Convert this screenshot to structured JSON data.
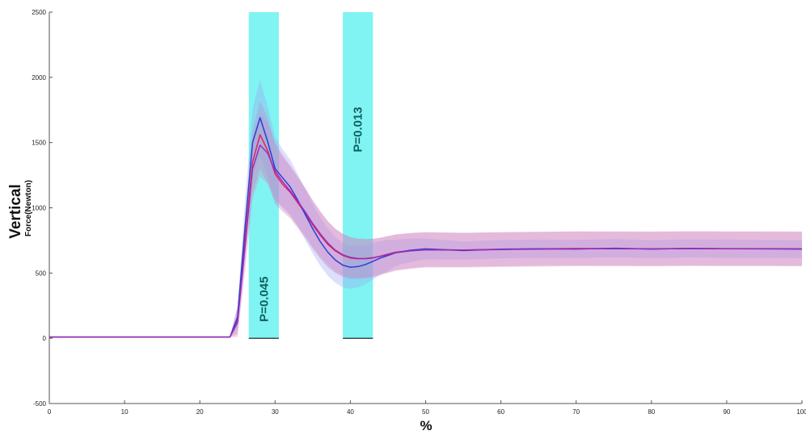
{
  "chart_data": {
    "type": "line",
    "xlabel": "%",
    "ylabel": "Vertical",
    "ylabel_sub": "Force(Newton)",
    "xlim": [
      0,
      100
    ],
    "ylim": [
      -500,
      2500
    ],
    "xticks": [
      0,
      10,
      20,
      30,
      40,
      50,
      60,
      70,
      80,
      90,
      100
    ],
    "yticks": [
      -500,
      0,
      500,
      1000,
      1500,
      2000,
      2500
    ],
    "grid": false,
    "highlight_regions": [
      {
        "x0": 26.5,
        "x1": 30.5,
        "label": "P=0.045",
        "label_position": "lower"
      },
      {
        "x0": 39,
        "x1": 43,
        "label": "P=0.013",
        "label_position": "upper"
      }
    ],
    "series": [
      {
        "color": "#e0245e",
        "band_color": "#c77ab8",
        "x": [
          0,
          24,
          25,
          26,
          27,
          28,
          29,
          30,
          31,
          32,
          33,
          34,
          35,
          36,
          37,
          38,
          39,
          40,
          41,
          42,
          43,
          44,
          45,
          46,
          48,
          50,
          55,
          60,
          65,
          70,
          75,
          80,
          85,
          90,
          95,
          100
        ],
        "y": [
          10,
          10,
          130,
          750,
          1350,
          1560,
          1440,
          1260,
          1180,
          1120,
          1040,
          960,
          870,
          790,
          720,
          670,
          635,
          615,
          610,
          612,
          618,
          630,
          645,
          660,
          672,
          680,
          677,
          682,
          685,
          688,
          687,
          686,
          688,
          687,
          687,
          686
        ],
        "band": [
          0,
          0,
          100,
          180,
          240,
          260,
          250,
          230,
          210,
          200,
          195,
          190,
          185,
          180,
          175,
          170,
          165,
          160,
          155,
          150,
          145,
          140,
          138,
          136,
          134,
          132,
          130,
          130,
          130,
          130,
          130,
          130,
          130,
          130,
          130,
          130
        ]
      },
      {
        "color": "#2b3fd4",
        "band_color": "#9b9ff0",
        "x": [
          0,
          24,
          25,
          26,
          27,
          28,
          29,
          30,
          31,
          32,
          33,
          34,
          35,
          36,
          37,
          38,
          39,
          40,
          41,
          42,
          43,
          44,
          45,
          46,
          48,
          50,
          55,
          60,
          65,
          70,
          75,
          80,
          85,
          90,
          95,
          100
        ],
        "y": [
          10,
          10,
          160,
          850,
          1500,
          1690,
          1510,
          1300,
          1230,
          1160,
          1060,
          950,
          840,
          740,
          660,
          600,
          560,
          545,
          550,
          565,
          590,
          615,
          635,
          655,
          675,
          685,
          672,
          683,
          686,
          684,
          690,
          684,
          688,
          686,
          685,
          684
        ],
        "band": [
          0,
          0,
          90,
          200,
          260,
          290,
          270,
          240,
          220,
          210,
          200,
          195,
          190,
          185,
          180,
          175,
          170,
          165,
          160,
          150,
          140,
          130,
          120,
          100,
          90,
          80,
          70,
          70,
          70,
          70,
          70,
          70,
          70,
          70,
          70,
          70
        ]
      },
      {
        "color": "#9a2fb5",
        "band_color": "#d08ac6",
        "x": [
          0,
          24,
          25,
          26,
          27,
          28,
          29,
          30,
          31,
          32,
          33,
          34,
          35,
          36,
          37,
          38,
          39,
          40,
          41,
          42,
          43,
          44,
          45,
          46,
          48,
          50,
          55,
          60,
          65,
          70,
          75,
          80,
          85,
          90,
          95,
          100
        ],
        "y": [
          10,
          10,
          120,
          700,
          1300,
          1480,
          1420,
          1280,
          1200,
          1130,
          1050,
          970,
          880,
          800,
          730,
          675,
          640,
          620,
          612,
          610,
          615,
          628,
          642,
          656,
          670,
          678,
          676,
          680,
          683,
          686,
          686,
          685,
          687,
          686,
          686,
          685
        ],
        "band": [
          0,
          0,
          110,
          190,
          230,
          240,
          235,
          220,
          205,
          195,
          190,
          185,
          180,
          175,
          170,
          165,
          160,
          155,
          150,
          148,
          146,
          144,
          142,
          140,
          138,
          136,
          134,
          134,
          134,
          134,
          134,
          134,
          134,
          134,
          134,
          134
        ]
      }
    ]
  }
}
